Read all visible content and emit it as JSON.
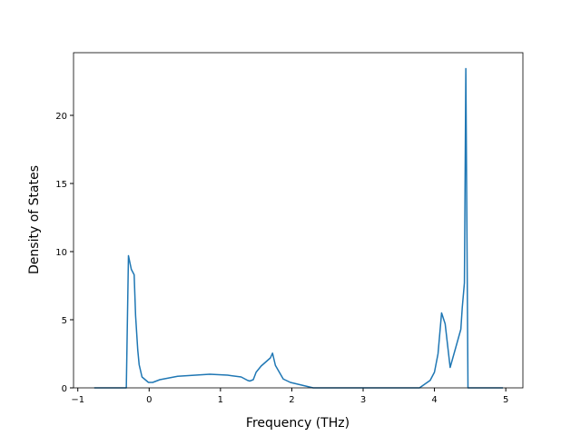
{
  "chart_data": {
    "type": "line",
    "xlabel": "Frequency (THz)",
    "ylabel": "Density of States",
    "xlim": [
      -1.06,
      5.24
    ],
    "ylim": [
      0,
      24.6
    ],
    "xticks": [
      {
        "value": -1,
        "label": "−1"
      },
      0,
      1,
      2,
      3,
      4,
      5
    ],
    "yticks": [
      0,
      5,
      10,
      15,
      20
    ],
    "series": [
      {
        "color": "#1f77b4",
        "x": [
          -0.77,
          -0.32,
          -0.29,
          -0.25,
          -0.21,
          -0.19,
          -0.16,
          -0.14,
          -0.1,
          -0.01,
          0.05,
          0.15,
          0.4,
          0.85,
          1.1,
          1.29,
          1.38,
          1.41,
          1.46,
          1.5,
          1.57,
          1.7,
          1.73,
          1.77,
          1.88,
          1.98,
          2.3,
          3.79,
          3.94,
          4.0,
          4.05,
          4.1,
          4.15,
          4.22,
          4.29,
          4.37,
          4.39,
          4.42,
          4.44,
          4.47,
          4.96
        ],
        "values": [
          0,
          0,
          9.7,
          8.7,
          8.3,
          5.3,
          2.8,
          1.7,
          0.8,
          0.4,
          0.4,
          0.6,
          0.85,
          1.0,
          0.93,
          0.8,
          0.55,
          0.5,
          0.6,
          1.15,
          1.6,
          2.2,
          2.55,
          1.65,
          0.65,
          0.4,
          0,
          0,
          0.55,
          1.15,
          2.5,
          5.5,
          4.7,
          1.5,
          2.8,
          4.3,
          5.9,
          7.7,
          23.43,
          0,
          0
        ]
      }
    ]
  }
}
